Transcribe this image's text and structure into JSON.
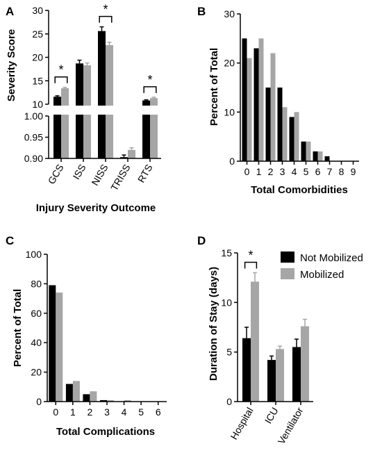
{
  "colors": {
    "not_mobilized": "#000000",
    "mobilized": "#a6a6a6",
    "axis": "#000000"
  },
  "legend": {
    "entries": [
      "Not Mobilized",
      "Mobilized"
    ]
  },
  "chart_data": [
    {
      "panel": "A",
      "type": "bar",
      "ylabel": "Severity Score",
      "xlabel": "Injury Severity Outcome",
      "categories": [
        "GCS",
        "ISS",
        "NISS",
        "TRISS",
        "RTS"
      ],
      "axis_break": {
        "upper": {
          "ylim": [
            10,
            30
          ],
          "ticks": [
            "10",
            "15",
            "20",
            "25",
            "30"
          ]
        },
        "lower": {
          "ylim": [
            0.9,
            1.0
          ],
          "ticks": [
            "0.90",
            "0.95",
            "1.00"
          ]
        }
      },
      "series": [
        {
          "name": "Not Mobilized",
          "values": [
            11.6,
            18.7,
            25.6,
            0.903,
            10.8
          ],
          "errors": [
            0.2,
            0.7,
            0.9,
            0.005,
            0.15
          ]
        },
        {
          "name": "Mobilized",
          "values": [
            13.4,
            18.3,
            22.6,
            0.92,
            11.3
          ],
          "errors": [
            0.2,
            0.5,
            0.6,
            0.005,
            0.2
          ]
        }
      ],
      "significance": [
        {
          "category": "GCS",
          "label": "*"
        },
        {
          "category": "NISS",
          "label": "*"
        },
        {
          "category": "RTS",
          "label": "*"
        }
      ]
    },
    {
      "panel": "B",
      "type": "bar",
      "ylabel": "Percent of Total",
      "xlabel": "Total Comorbidities",
      "categories": [
        "0",
        "1",
        "2",
        "3",
        "4",
        "5",
        "6",
        "7",
        "8",
        "9"
      ],
      "ylim": [
        0,
        30
      ],
      "yticks": [
        "0",
        "10",
        "20",
        "30"
      ],
      "series": [
        {
          "name": "Not Mobilized",
          "values": [
            25,
            23,
            15,
            15,
            9,
            4,
            2,
            1,
            0,
            0
          ]
        },
        {
          "name": "Mobilized",
          "values": [
            21,
            25,
            22,
            11,
            10,
            4,
            2,
            0,
            0,
            0
          ]
        }
      ]
    },
    {
      "panel": "C",
      "type": "bar",
      "ylabel": "Percent of Total",
      "xlabel": "Total Complications",
      "categories": [
        "0",
        "1",
        "2",
        "3",
        "4",
        "5",
        "6"
      ],
      "ylim": [
        0,
        100
      ],
      "yticks": [
        "0",
        "20",
        "40",
        "60",
        "80",
        "100"
      ],
      "series": [
        {
          "name": "Not Mobilized",
          "values": [
            79,
            12,
            5,
            1,
            0,
            0,
            0
          ]
        },
        {
          "name": "Mobilized",
          "values": [
            74,
            14,
            7,
            1,
            1,
            0,
            0
          ]
        }
      ]
    },
    {
      "panel": "D",
      "type": "bar",
      "ylabel": "Duration of Stay (days)",
      "xlabel": "",
      "categories": [
        "Hospital",
        "ICU",
        "Ventilator"
      ],
      "ylim": [
        0,
        15
      ],
      "yticks": [
        "0",
        "5",
        "10",
        "15"
      ],
      "legend_position": "top-right",
      "series": [
        {
          "name": "Not Mobilized",
          "values": [
            6.4,
            4.2,
            5.5
          ],
          "errors": [
            1.1,
            0.4,
            0.8
          ]
        },
        {
          "name": "Mobilized",
          "values": [
            12.1,
            5.3,
            7.6
          ],
          "errors": [
            0.9,
            0.3,
            0.7
          ]
        }
      ],
      "significance": [
        {
          "category": "Hospital",
          "label": "*"
        }
      ]
    }
  ]
}
